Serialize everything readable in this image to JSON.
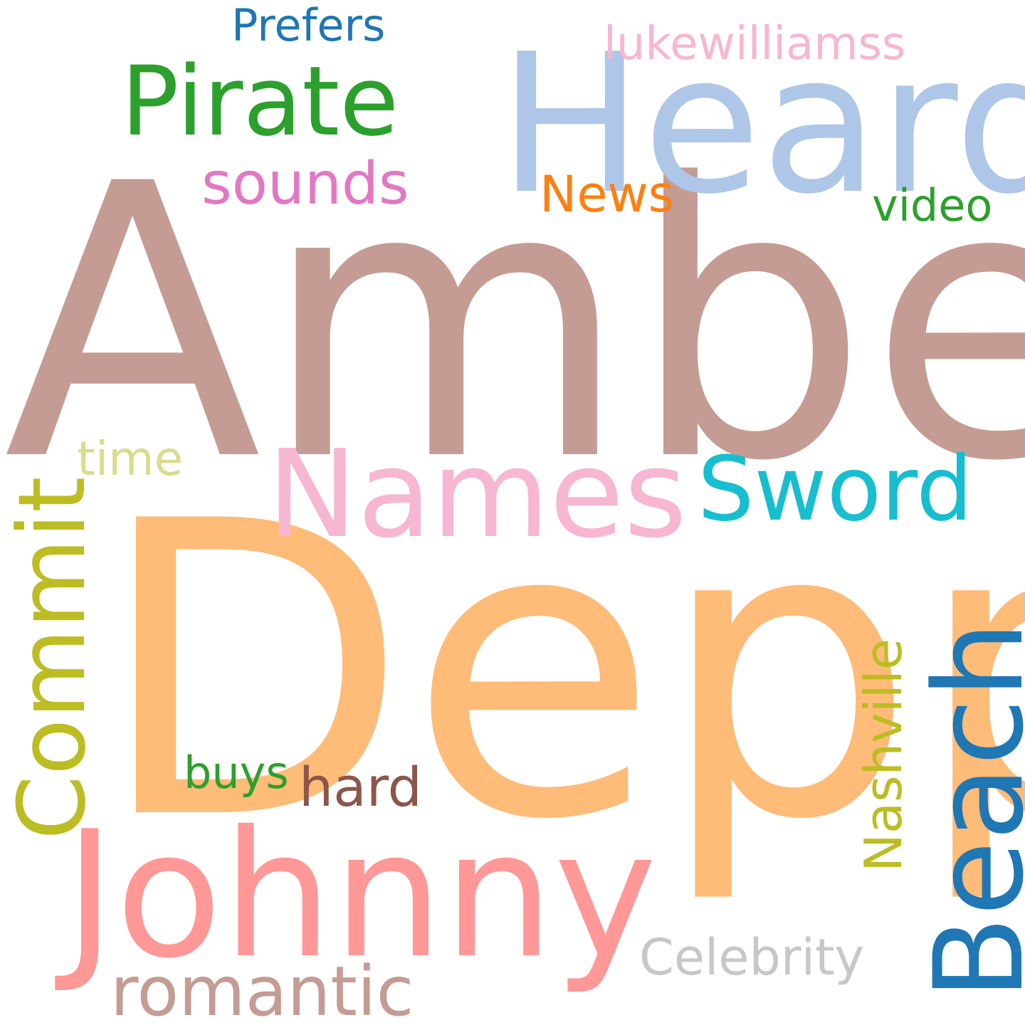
{
  "words": {
    "amber": {
      "text": "Amber",
      "color": "#c49c94"
    },
    "depp": {
      "text": "Depp",
      "color": "#ffbb78"
    },
    "heard": {
      "text": "Heard",
      "color": "#aec7e8"
    },
    "johnny": {
      "text": "Johnny",
      "color": "#ff9896"
    },
    "pirate": {
      "text": "Pirate",
      "color": "#2ca02c"
    },
    "names": {
      "text": "Names",
      "color": "#f7b6d2"
    },
    "sword": {
      "text": "Sword",
      "color": "#17becf"
    },
    "commit": {
      "text": "Commit",
      "color": "#bcbd22"
    },
    "beach": {
      "text": "Beach",
      "color": "#1f77b4"
    },
    "prefers": {
      "text": "Prefers",
      "color": "#1f77b4"
    },
    "lukewilliamss": {
      "text": "lukewilliamss",
      "color": "#f7b6d2"
    },
    "sounds": {
      "text": "sounds",
      "color": "#e377c2"
    },
    "news": {
      "text": "News",
      "color": "#ff7f0e"
    },
    "video": {
      "text": "video",
      "color": "#2ca02c"
    },
    "time": {
      "text": "time",
      "color": "#dbdb8d"
    },
    "buys": {
      "text": "buys",
      "color": "#2ca02c"
    },
    "hard": {
      "text": "hard",
      "color": "#8c564b"
    },
    "nashville": {
      "text": "Nashville",
      "color": "#bcbd22"
    },
    "romantic": {
      "text": "romantic",
      "color": "#c49c94"
    },
    "celebrity": {
      "text": "Celebrity",
      "color": "#c7c7c7"
    }
  }
}
